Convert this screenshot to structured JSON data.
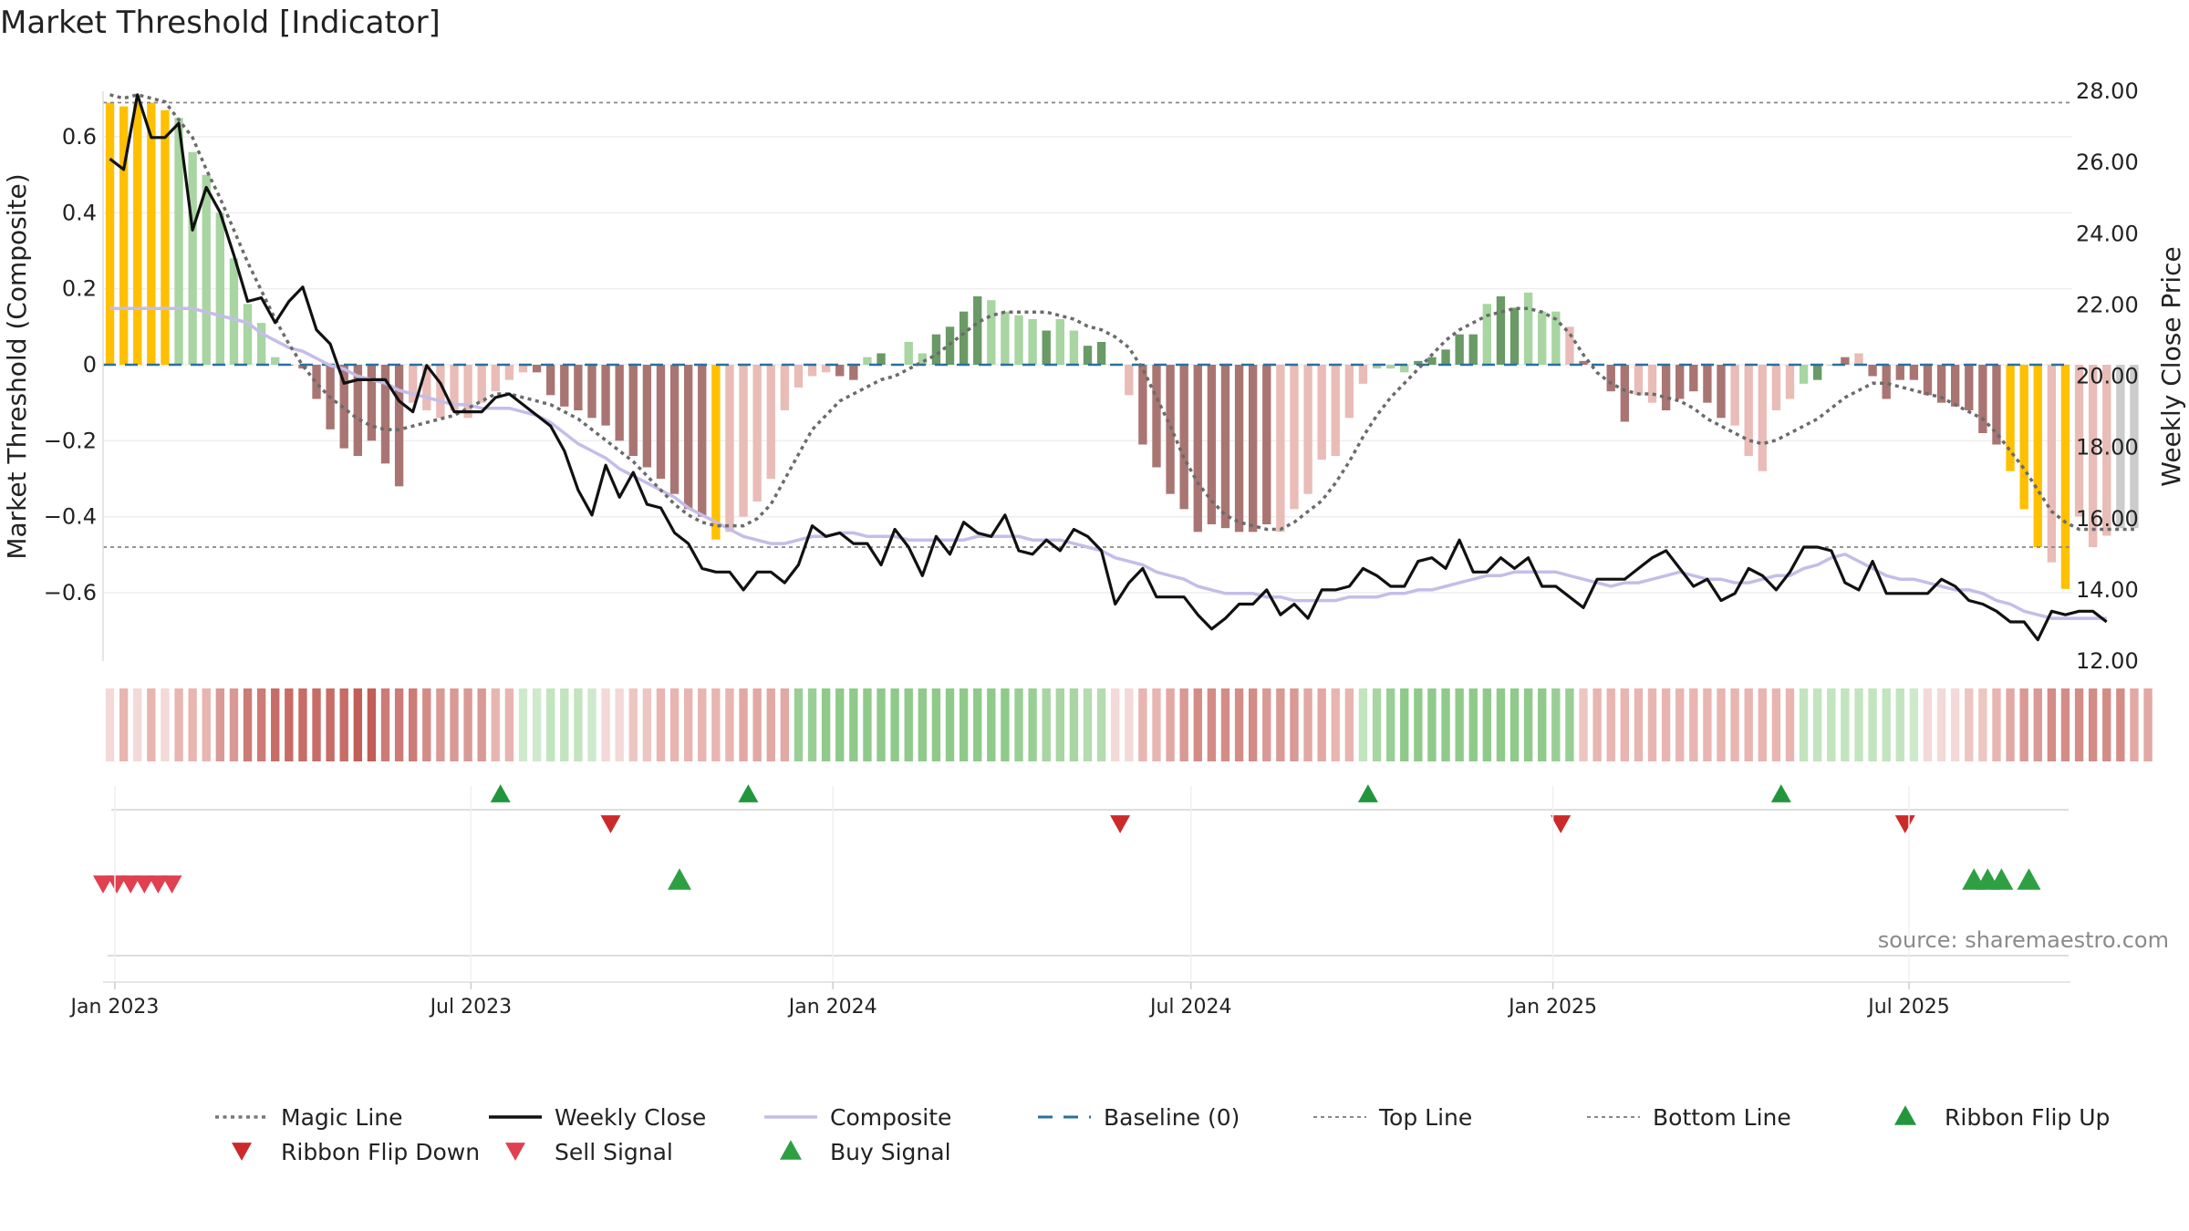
{
  "chart_data": {
    "type": "bar",
    "title": "Market Threshold [Indicator]",
    "ylabel_left": "Market Threshold (Composite)",
    "ylabel_right": "Weekly Close Price",
    "source": "source: sharemaestro.com",
    "ylim_left": [
      -0.78,
      0.72
    ],
    "ylim_right": [
      12.0,
      28.0
    ],
    "y_ticks_left": [
      {
        "value": 0.6,
        "label": "0.6"
      },
      {
        "value": 0.4,
        "label": "0.4"
      },
      {
        "value": 0.2,
        "label": "0.2"
      },
      {
        "value": 0,
        "label": "0"
      },
      {
        "value": -0.2,
        "label": "−0.2"
      },
      {
        "value": -0.4,
        "label": "−0.4"
      },
      {
        "value": -0.6,
        "label": "−0.6"
      }
    ],
    "y_ticks_right": [
      "28.00",
      "26.00",
      "24.00",
      "22.00",
      "20.00",
      "18.00",
      "16.00",
      "14.00",
      "12.00"
    ],
    "x_range": [
      "2022-12-26",
      "2025-09-22"
    ],
    "x_ticks": [
      {
        "date": "2023-01-01",
        "label": "Jan 2023"
      },
      {
        "date": "2023-07-01",
        "label": "Jul 2023"
      },
      {
        "date": "2024-01-01",
        "label": "Jan 2024"
      },
      {
        "date": "2024-07-01",
        "label": "Jul 2024"
      },
      {
        "date": "2025-01-01",
        "label": "Jan 2025"
      },
      {
        "date": "2025-07-01",
        "label": "Jul 2025"
      }
    ],
    "top_line": 0.69,
    "bottom_line": -0.48,
    "composite": [
      0.69,
      0.68,
      0.69,
      0.69,
      0.67,
      0.65,
      0.56,
      0.5,
      0.4,
      0.28,
      0.16,
      0.11,
      0.02,
      0,
      -0.01,
      -0.09,
      -0.17,
      -0.22,
      -0.24,
      -0.2,
      -0.26,
      -0.32,
      -0.1,
      -0.12,
      -0.14,
      -0.12,
      -0.14,
      -0.1,
      -0.07,
      -0.04,
      -0.02,
      -0.02,
      -0.08,
      -0.11,
      -0.12,
      -0.14,
      -0.16,
      -0.2,
      -0.24,
      -0.27,
      -0.3,
      -0.34,
      -0.38,
      -0.4,
      -0.46,
      -0.44,
      -0.4,
      -0.36,
      -0.3,
      -0.12,
      -0.06,
      -0.03,
      -0.02,
      -0.03,
      -0.04,
      0.02,
      0.03,
      0,
      0.06,
      0.03,
      0.08,
      0.1,
      0.14,
      0.18,
      0.17,
      0.14,
      0.13,
      0.12,
      0.09,
      0.12,
      0.09,
      0.05,
      0.06,
      0,
      -0.08,
      -0.21,
      -0.27,
      -0.34,
      -0.38,
      -0.44,
      -0.42,
      -0.43,
      -0.44,
      -0.44,
      -0.42,
      -0.44,
      -0.38,
      -0.34,
      -0.25,
      -0.24,
      -0.14,
      -0.05,
      -0.01,
      -0.01,
      -0.02,
      0.01,
      0.02,
      0.04,
      0.08,
      0.08,
      0.16,
      0.18,
      0.15,
      0.19,
      0.14,
      0.14,
      0.1,
      0.01,
      0,
      -0.07,
      -0.15,
      -0.08,
      -0.1,
      -0.12,
      -0.09,
      -0.07,
      -0.1,
      -0.14,
      -0.16,
      -0.24,
      -0.28,
      -0.12,
      -0.09,
      -0.05,
      -0.04,
      0,
      0.02,
      0.03,
      -0.03,
      -0.09,
      -0.04,
      -0.04,
      -0.08,
      -0.1,
      -0.11,
      -0.12,
      -0.18,
      -0.21,
      -0.28,
      -0.38,
      -0.48,
      -0.52,
      -0.59,
      -0.4,
      -0.48,
      -0.45,
      -0.43,
      -0.43
    ],
    "bar_colors": [
      "#ffc000",
      "#ffc000",
      "#ffc000",
      "#ffc000",
      "#ffc000",
      "#a8d5a2",
      "#a8d5a2",
      "#a8d5a2",
      "#a8d5a2",
      "#a8d5a2",
      "#a8d5a2",
      "#a8d5a2",
      "#a8d5a2",
      "#a97572",
      "#a97572",
      "#a97572",
      "#a97572",
      "#a97572",
      "#a97572",
      "#a97572",
      "#a97572",
      "#a97572",
      "#e9bcb7",
      "#e9bcb7",
      "#e9bcb7",
      "#e9bcb7",
      "#e9bcb7",
      "#e9bcb7",
      "#e9bcb7",
      "#e9bcb7",
      "#e9bcb7",
      "#a97572",
      "#a97572",
      "#a97572",
      "#a97572",
      "#a97572",
      "#a97572",
      "#a97572",
      "#a97572",
      "#a97572",
      "#a97572",
      "#a97572",
      "#a97572",
      "#a97572",
      "#ffc000",
      "#e9bcb7",
      "#e9bcb7",
      "#e9bcb7",
      "#e9bcb7",
      "#e9bcb7",
      "#e9bcb7",
      "#e9bcb7",
      "#e9bcb7",
      "#a97572",
      "#a97572",
      "#a8d5a2",
      "#6a9a65",
      "#a8d5a2",
      "#a8d5a2",
      "#a8d5a2",
      "#6a9a65",
      "#6a9a65",
      "#6a9a65",
      "#6a9a65",
      "#a8d5a2",
      "#a8d5a2",
      "#a8d5a2",
      "#a8d5a2",
      "#6a9a65",
      "#a8d5a2",
      "#a8d5a2",
      "#6a9a65",
      "#6a9a65",
      "#a8d5a2",
      "#e9bcb7",
      "#a97572",
      "#a97572",
      "#a97572",
      "#a97572",
      "#a97572",
      "#a97572",
      "#a97572",
      "#a97572",
      "#a97572",
      "#a97572",
      "#e9bcb7",
      "#e9bcb7",
      "#e9bcb7",
      "#e9bcb7",
      "#e9bcb7",
      "#e9bcb7",
      "#e9bcb7",
      "#a8d5a2",
      "#a8d5a2",
      "#a8d5a2",
      "#6a9a65",
      "#6a9a65",
      "#6a9a65",
      "#6a9a65",
      "#6a9a65",
      "#a8d5a2",
      "#6a9a65",
      "#6a9a65",
      "#a8d5a2",
      "#a8d5a2",
      "#a8d5a2",
      "#e9bcb7",
      "#a97572",
      "#e9bcb7",
      "#a97572",
      "#a97572",
      "#e9bcb7",
      "#e9bcb7",
      "#a97572",
      "#a97572",
      "#a97572",
      "#a97572",
      "#a97572",
      "#e9bcb7",
      "#e9bcb7",
      "#e9bcb7",
      "#e9bcb7",
      "#e9bcb7",
      "#a8d5a2",
      "#6a9a65",
      "#e9bcb7",
      "#a97572",
      "#e9bcb7",
      "#a97572",
      "#a97572",
      "#a97572",
      "#a97572",
      "#a97572",
      "#a97572",
      "#a97572",
      "#a97572",
      "#a97572",
      "#a97572",
      "#ffc000",
      "#ffc000",
      "#ffc000",
      "#e9bcb7",
      "#ffc000",
      "#e9bcb7",
      "#e9bcb7",
      "#e9bcb7"
    ],
    "weekly_close": [
      26.1,
      25.8,
      27.9,
      26.7,
      26.7,
      27.1,
      24.1,
      25.3,
      24.6,
      23.4,
      22.1,
      22.2,
      21.5,
      22.1,
      22.5,
      21.3,
      20.9,
      19.8,
      19.9,
      19.9,
      19.9,
      19.3,
      19.0,
      20.3,
      19.8,
      19.0,
      19.0,
      19.0,
      19.4,
      19.5,
      19.2,
      18.9,
      18.6,
      17.9,
      16.8,
      16.1,
      17.5,
      16.6,
      17.3,
      16.4,
      16.3,
      15.6,
      15.3,
      14.6,
      14.5,
      14.5,
      14.0,
      14.5,
      14.5,
      14.2,
      14.7,
      15.8,
      15.5,
      15.6,
      15.3,
      15.3,
      14.7,
      15.7,
      15.2,
      14.4,
      15.5,
      15.0,
      15.9,
      15.6,
      15.5,
      16.1,
      15.1,
      15.0,
      15.4,
      15.1,
      15.7,
      15.5,
      15.1,
      13.6,
      14.2,
      14.6,
      13.8,
      13.8,
      13.8,
      13.3,
      12.9,
      13.2,
      13.6,
      13.6,
      14.0,
      13.3,
      13.6,
      13.2,
      14.0,
      14.0,
      14.1,
      14.6,
      14.4,
      14.1,
      14.1,
      14.8,
      14.9,
      14.6,
      15.4,
      14.5,
      14.5,
      14.9,
      14.6,
      14.9,
      14.1,
      14.1,
      13.8,
      13.5,
      14.3,
      14.3,
      14.3,
      14.6,
      14.9,
      15.1,
      14.6,
      14.1,
      14.3,
      13.7,
      13.9,
      14.6,
      14.4,
      14.0,
      14.5,
      15.2,
      15.2,
      15.1,
      14.2,
      14.0,
      14.8,
      13.9,
      13.9,
      13.9,
      13.9,
      14.3,
      14.1,
      13.7,
      13.6,
      13.4,
      13.1,
      13.1,
      12.6,
      13.4,
      13.3,
      13.4,
      13.4,
      13.1
    ],
    "magic_line_close": [
      27.9,
      27.8,
      27.9,
      27.8,
      27.7,
      27.2,
      26.7,
      25.8,
      25.0,
      24.1,
      23.2,
      22.4,
      21.6,
      20.9,
      20.3,
      19.8,
      19.4,
      19.1,
      18.8,
      18.6,
      18.5,
      18.5,
      18.6,
      18.7,
      18.8,
      18.9,
      19.1,
      19.3,
      19.5,
      19.5,
      19.4,
      19.3,
      19.2,
      19.0,
      18.8,
      18.5,
      18.2,
      17.9,
      17.6,
      17.2,
      16.8,
      16.4,
      16.1,
      15.9,
      15.8,
      15.8,
      15.8,
      16.0,
      16.4,
      17.1,
      17.8,
      18.5,
      18.9,
      19.3,
      19.5,
      19.7,
      19.9,
      20.0,
      20.2,
      20.4,
      20.6,
      20.9,
      21.2,
      21.5,
      21.7,
      21.8,
      21.8,
      21.8,
      21.8,
      21.7,
      21.6,
      21.4,
      21.3,
      21.1,
      20.8,
      20.2,
      19.4,
      18.6,
      17.7,
      17.0,
      16.5,
      16.1,
      15.9,
      15.8,
      15.7,
      15.7,
      15.9,
      16.2,
      16.5,
      17.0,
      17.6,
      18.3,
      18.9,
      19.4,
      19.8,
      20.2,
      20.6,
      21.0,
      21.3,
      21.5,
      21.7,
      21.8,
      21.9,
      21.9,
      21.8,
      21.6,
      21.2,
      20.6,
      20.1,
      19.8,
      19.6,
      19.5,
      19.5,
      19.4,
      19.3,
      19.1,
      18.8,
      18.6,
      18.4,
      18.2,
      18.1,
      18.2,
      18.4,
      18.6,
      18.8,
      19.1,
      19.4,
      19.6,
      19.8,
      19.8,
      19.7,
      19.6,
      19.5,
      19.4,
      19.2,
      19.0,
      18.8,
      18.4,
      17.9,
      17.4,
      16.8,
      16.2,
      15.9,
      15.7,
      15.7,
      15.7,
      15.7,
      15.7
    ],
    "composite_line_close": [
      21.9,
      21.9,
      21.9,
      21.9,
      21.9,
      21.9,
      21.9,
      21.8,
      21.7,
      21.6,
      21.5,
      21.2,
      21.0,
      20.8,
      20.7,
      20.5,
      20.3,
      20.2,
      20.0,
      19.9,
      19.8,
      19.6,
      19.5,
      19.4,
      19.3,
      19.2,
      19.2,
      19.1,
      19.1,
      19.1,
      19.0,
      18.9,
      18.7,
      18.4,
      18.1,
      17.9,
      17.7,
      17.4,
      17.2,
      17.0,
      16.8,
      16.6,
      16.3,
      16.1,
      15.9,
      15.7,
      15.5,
      15.4,
      15.3,
      15.3,
      15.4,
      15.5,
      15.5,
      15.6,
      15.6,
      15.5,
      15.5,
      15.5,
      15.4,
      15.4,
      15.4,
      15.4,
      15.4,
      15.5,
      15.5,
      15.5,
      15.5,
      15.4,
      15.4,
      15.4,
      15.3,
      15.2,
      15.1,
      14.9,
      14.8,
      14.7,
      14.5,
      14.4,
      14.3,
      14.1,
      14.0,
      13.9,
      13.9,
      13.9,
      13.8,
      13.8,
      13.7,
      13.7,
      13.7,
      13.7,
      13.8,
      13.8,
      13.8,
      13.9,
      13.9,
      14.0,
      14.0,
      14.1,
      14.2,
      14.3,
      14.4,
      14.4,
      14.5,
      14.5,
      14.5,
      14.5,
      14.4,
      14.3,
      14.2,
      14.1,
      14.2,
      14.2,
      14.3,
      14.4,
      14.5,
      14.4,
      14.3,
      14.3,
      14.2,
      14.2,
      14.3,
      14.4,
      14.4,
      14.6,
      14.7,
      14.9,
      15.0,
      14.8,
      14.6,
      14.4,
      14.3,
      14.3,
      14.2,
      14.1,
      14.0,
      14.0,
      13.9,
      13.7,
      13.6,
      13.4,
      13.3,
      13.2,
      13.2,
      13.2,
      13.2,
      13.2
    ],
    "ribbon_colors": [
      "#f3d9d7",
      "#e8b5b1",
      "#f3d9d7",
      "#e8b5b1",
      "#f3d9d7",
      "#e8b5b1",
      "#e8b5b1",
      "#e8b5b1",
      "#d99995",
      "#d99995",
      "#cc7b76",
      "#cc7b76",
      "#c76c66",
      "#c76c66",
      "#c76c66",
      "#c76c66",
      "#c76c66",
      "#c76c66",
      "#c15e57",
      "#c15e57",
      "#cc7b76",
      "#cc7b76",
      "#cc7b76",
      "#d48c87",
      "#d99995",
      "#d99995",
      "#d99995",
      "#d99995",
      "#e8b5b1",
      "#e8b5b1",
      "#cfe9cd",
      "#cfe9cd",
      "#c2e4be",
      "#c2e4be",
      "#c2e4be",
      "#cfe9cd",
      "#f3d9d7",
      "#f3d9d7",
      "#edc6c2",
      "#edc6c2",
      "#e8b5b1",
      "#e8b5b1",
      "#e8b5b1",
      "#e8b5b1",
      "#e8b5b1",
      "#e8b5b1",
      "#e2a8a4",
      "#e2a8a4",
      "#e2a8a4",
      "#e2a8a4",
      "#99cf95",
      "#99cf95",
      "#8fca8a",
      "#8fca8a",
      "#8fca8a",
      "#8fca8a",
      "#8fca8a",
      "#8fca8a",
      "#8fca8a",
      "#8fca8a",
      "#8fca8a",
      "#8fca8a",
      "#8fca8a",
      "#8fca8a",
      "#8fca8a",
      "#8fca8a",
      "#99cf95",
      "#99cf95",
      "#a8d5a2",
      "#a8d5a2",
      "#a8d5a2",
      "#b5dcb0",
      "#b5dcb0",
      "#f3d9d7",
      "#f3d9d7",
      "#e8b5b1",
      "#e8b5b1",
      "#e2a8a4",
      "#d99995",
      "#d48c87",
      "#d48c87",
      "#d48c87",
      "#d48c87",
      "#d48c87",
      "#d99995",
      "#d99995",
      "#d99995",
      "#e2a8a4",
      "#e2a8a4",
      "#e8b5b1",
      "#e8b5b1",
      "#c2e4be",
      "#a8d5a2",
      "#99cf95",
      "#8fca8a",
      "#8fca8a",
      "#8fca8a",
      "#8fca8a",
      "#8fca8a",
      "#8fca8a",
      "#8fca8a",
      "#8fca8a",
      "#8fca8a",
      "#8fca8a",
      "#8fca8a",
      "#99cf95",
      "#99cf95",
      "#edc6c2",
      "#e8b5b1",
      "#e8b5b1",
      "#e8b5b1",
      "#e8b5b1",
      "#e8b5b1",
      "#e8b5b1",
      "#e8b5b1",
      "#e8b5b1",
      "#e8b5b1",
      "#e8b5b1",
      "#e8b5b1",
      "#e8b5b1",
      "#e8b5b1",
      "#e8b5b1",
      "#e8b5b1",
      "#c2e4be",
      "#c2e4be",
      "#c2e4be",
      "#c2e4be",
      "#c2e4be",
      "#c2e4be",
      "#c2e4be",
      "#c2e4be",
      "#cfe9cd",
      "#f3d9d7",
      "#f3d9d7",
      "#f3d9d7",
      "#edc6c2",
      "#edc6c2",
      "#e8b5b1",
      "#e2a8a4",
      "#d99995",
      "#d99995",
      "#d48c87",
      "#d48c87",
      "#d48c87",
      "#d48c87",
      "#d48c87",
      "#d48c87",
      "#e2a8a4",
      "#e2a8a4"
    ],
    "ribbon_flip_up": [
      "2023-07-16",
      "2023-11-19",
      "2024-09-29",
      "2025-04-27"
    ],
    "ribbon_flip_down": [
      "2023-09-10",
      "2024-05-26",
      "2025-01-05",
      "2025-06-29"
    ],
    "sell_signal": [
      "2022-12-26",
      "2023-01-02",
      "2023-01-09",
      "2023-01-16",
      "2023-01-23",
      "2023-01-30"
    ],
    "buy_signal": [
      "2023-10-15",
      "2025-08-03",
      "2025-08-10",
      "2025-08-17",
      "2025-08-31"
    ],
    "legend": [
      {
        "label": "Magic Line",
        "style": "dotted-line",
        "color": "#777777"
      },
      {
        "label": "Weekly Close",
        "style": "solid-line",
        "color": "#111111"
      },
      {
        "label": "Composite",
        "style": "solid-line",
        "color": "#c5bde8"
      },
      {
        "label": "Baseline (0)",
        "style": "dashed-line",
        "color": "#2b6f9e"
      },
      {
        "label": "Top Line",
        "style": "dotted-line-thin",
        "color": "#888888"
      },
      {
        "label": "Bottom Line",
        "style": "dotted-line-thin",
        "color": "#888888"
      },
      {
        "label": "Ribbon Flip Up",
        "style": "triangle-up",
        "color": "#22963d"
      },
      {
        "label": "Ribbon Flip Down",
        "style": "triangle-down",
        "color": "#cc2a2a"
      },
      {
        "label": "Sell Signal",
        "style": "triangle-down",
        "color": "#e04050"
      },
      {
        "label": "Buy Signal",
        "style": "triangle-up",
        "color": "#2ea043"
      }
    ],
    "legend_placement": "bottom",
    "grid": true
  }
}
